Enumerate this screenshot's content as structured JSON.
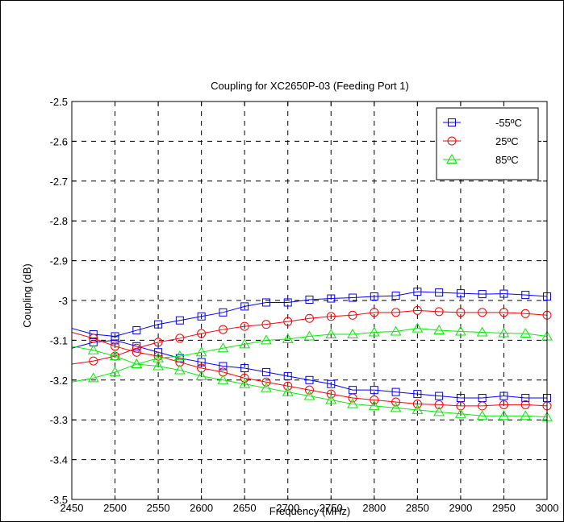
{
  "chart_data": {
    "type": "line",
    "title": "Coupling for XC2650P-03 (Feeding Port 1)",
    "xlabel": "Frequency (MHz)",
    "ylabel": "Coupling (dB)",
    "xlim": [
      2450,
      3000
    ],
    "ylim": [
      -3.5,
      -2.5
    ],
    "xticks": [
      2450,
      2500,
      2550,
      2600,
      2650,
      2700,
      2750,
      2800,
      2850,
      2900,
      2950,
      3000
    ],
    "yticks": [
      -2.5,
      -2.6,
      -2.7,
      -2.8,
      -2.9,
      -3,
      -3.1,
      -3.2,
      -3.3,
      -3.4,
      -3.5
    ],
    "grid": true,
    "legend_position": "top-right",
    "x": [
      2450,
      2475,
      2500,
      2525,
      2550,
      2575,
      2600,
      2625,
      2650,
      2675,
      2700,
      2725,
      2750,
      2775,
      2800,
      2825,
      2850,
      2875,
      2900,
      2925,
      2950,
      2975,
      3000
    ],
    "series": [
      {
        "name": "-55ºC",
        "color": "#0000ff",
        "marker": "square",
        "values": [
          -3.07,
          -3.085,
          -3.09,
          -3.075,
          -3.06,
          -3.05,
          -3.04,
          -3.03,
          -3.015,
          -3.005,
          -3.005,
          -2.998,
          -2.995,
          -2.993,
          -2.99,
          -2.988,
          -2.978,
          -2.98,
          -2.982,
          -2.984,
          -2.983,
          -2.986,
          -2.99
        ]
      },
      {
        "name": "-55ºC",
        "color": "#0000ff",
        "marker": "square",
        "values": [
          -3.12,
          -3.105,
          -3.1,
          -3.115,
          -3.13,
          -3.145,
          -3.155,
          -3.165,
          -3.17,
          -3.18,
          -3.19,
          -3.2,
          -3.21,
          -3.225,
          -3.225,
          -3.23,
          -3.235,
          -3.24,
          -3.245,
          -3.245,
          -3.24,
          -3.245,
          -3.245
        ]
      },
      {
        "name": "25ºC",
        "color": "#ff0000",
        "marker": "circle",
        "values": [
          -3.16,
          -3.152,
          -3.14,
          -3.12,
          -3.105,
          -3.095,
          -3.083,
          -3.073,
          -3.065,
          -3.06,
          -3.053,
          -3.045,
          -3.04,
          -3.037,
          -3.03,
          -3.03,
          -3.025,
          -3.028,
          -3.03,
          -3.03,
          -3.03,
          -3.033,
          -3.037
        ]
      },
      {
        "name": "25ºC",
        "color": "#ff0000",
        "marker": "circle",
        "values": [
          -3.08,
          -3.095,
          -3.115,
          -3.13,
          -3.14,
          -3.155,
          -3.17,
          -3.18,
          -3.195,
          -3.205,
          -3.215,
          -3.225,
          -3.235,
          -3.245,
          -3.25,
          -3.255,
          -3.26,
          -3.262,
          -3.265,
          -3.265,
          -3.262,
          -3.262,
          -3.265
        ]
      },
      {
        "name": "85ºC",
        "color": "#00ee00",
        "marker": "triangle",
        "values": [
          -3.205,
          -3.195,
          -3.18,
          -3.16,
          -3.145,
          -3.14,
          -3.13,
          -3.12,
          -3.11,
          -3.1,
          -3.097,
          -3.09,
          -3.085,
          -3.085,
          -3.08,
          -3.078,
          -3.07,
          -3.075,
          -3.078,
          -3.08,
          -3.082,
          -3.083,
          -3.09
        ]
      },
      {
        "name": "85ºC",
        "color": "#00ee00",
        "marker": "triangle",
        "values": [
          -3.115,
          -3.125,
          -3.14,
          -3.16,
          -3.165,
          -3.175,
          -3.19,
          -3.2,
          -3.21,
          -3.22,
          -3.23,
          -3.24,
          -3.25,
          -3.26,
          -3.265,
          -3.27,
          -3.275,
          -3.28,
          -3.285,
          -3.29,
          -3.29,
          -3.29,
          -3.293
        ]
      }
    ],
    "legend": [
      {
        "name": "-55ºC",
        "color": "#0000ff",
        "marker": "square"
      },
      {
        "name": "25ºC",
        "color": "#ff0000",
        "marker": "circle"
      },
      {
        "name": "85ºC",
        "color": "#00ee00",
        "marker": "triangle"
      }
    ]
  }
}
